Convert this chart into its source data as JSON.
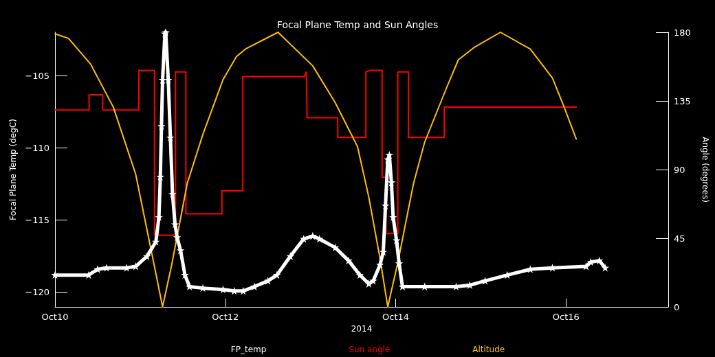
{
  "chart_data": {
    "type": "line",
    "title": "Focal Plane Temp and Sun Angles",
    "xlabel": "2014",
    "ylabel": "Focal Plane Temp (degC)",
    "y2label": "Angle (degrees)",
    "xlim": [
      "2014-10-10T00:00",
      "2014-10-17T04:48"
    ],
    "xticks": [
      {
        "value": "2014-10-10",
        "label": "Oct10"
      },
      {
        "value": "2014-10-12",
        "label": "Oct12"
      },
      {
        "value": "2014-10-14",
        "label": "Oct14"
      },
      {
        "value": "2014-10-16",
        "label": "Oct16"
      }
    ],
    "ylim": [
      -121,
      -102
    ],
    "yticks": [
      -120,
      -115,
      -110,
      -105
    ],
    "y2lim": [
      0,
      180
    ],
    "y2ticks": [
      0,
      45,
      90,
      135,
      180
    ],
    "grid": false,
    "legend": "bottom",
    "series": [
      {
        "name": "FP_temp",
        "color": "#ffffff",
        "marker": "star",
        "x": [
          "2014-10-10T00:00",
          "2014-10-10T09:29",
          "2014-10-10T12:00",
          "2014-10-10T14:31",
          "2014-10-10T20:10",
          "2014-10-10T22:44",
          "2014-10-11T01:54",
          "2014-10-11T04:25",
          "2014-10-11T05:17",
          "2014-10-11T05:41",
          "2014-10-11T06:00",
          "2014-10-11T06:19",
          "2014-10-11T06:58",
          "2014-10-11T07:12",
          "2014-10-11T07:55",
          "2014-10-11T08:31",
          "2014-10-11T09:07",
          "2014-10-11T09:50",
          "2014-10-11T10:25",
          "2014-10-11T11:23",
          "2014-10-11T12:37",
          "2014-10-11T13:54",
          "2014-10-11T17:40",
          "2014-10-11T23:21",
          "2014-10-12T02:31",
          "2014-10-12T05:02",
          "2014-10-12T08:10",
          "2014-10-12T12:00",
          "2014-10-12T14:31",
          "2014-10-12T18:19",
          "2014-10-12T22:05",
          "2014-10-13T00:37",
          "2014-10-13T02:31",
          "2014-10-13T06:58",
          "2014-10-13T10:44",
          "2014-10-13T13:55",
          "2014-10-13T16:25",
          "2014-10-13T17:40",
          "2014-10-13T19:34",
          "2014-10-13T20:30",
          "2014-10-13T21:07",
          "2014-10-13T21:46",
          "2014-10-13T22:13",
          "2014-10-13T22:48",
          "2014-10-13T23:17",
          "2014-10-14T00:14",
          "2014-10-14T00:58",
          "2014-10-14T01:55",
          "2014-10-14T08:10",
          "2014-10-14T17:02",
          "2014-10-14T20:53",
          "2014-10-15T01:12",
          "2014-10-15T07:26",
          "2014-10-15T13:55",
          "2014-10-15T20:10",
          "2014-10-16T05:38",
          "2014-10-16T06:58",
          "2014-10-16T09:22",
          "2014-10-16T11:02"
        ],
        "values": [
          -118.8,
          -118.8,
          -118.4,
          -118.3,
          -118.3,
          -118.2,
          -117.5,
          -116.5,
          -114.8,
          -112.0,
          -108.5,
          -105.3,
          -102.1,
          -102.0,
          -105.3,
          -109.3,
          -113.2,
          -115.3,
          -116.2,
          -117.1,
          -118.8,
          -119.6,
          -119.7,
          -119.8,
          -119.9,
          -119.9,
          -119.6,
          -119.2,
          -118.8,
          -117.5,
          -116.3,
          -116.1,
          -116.3,
          -116.9,
          -117.8,
          -118.8,
          -119.4,
          -119.2,
          -118.1,
          -117.2,
          -114.0,
          -110.8,
          -110.5,
          -112.4,
          -114.8,
          -116.4,
          -118.0,
          -119.6,
          -119.6,
          -119.6,
          -119.5,
          -119.2,
          -118.8,
          -118.4,
          -118.3,
          -118.2,
          -117.9,
          -117.8,
          -118.3
        ]
      },
      {
        "name": "Sun angle",
        "color": "#ff0000",
        "axis": "y2",
        "x": [
          "2014-10-10T00:00",
          "2014-10-10T09:36",
          "2014-10-10T09:36",
          "2014-10-10T13:26",
          "2014-10-10T13:26",
          "2014-10-10T23:37",
          "2014-10-10T23:37",
          "2014-10-11T04:02",
          "2014-10-11T04:02",
          "2014-10-11T09:58",
          "2014-10-11T09:58",
          "2014-10-11T12:53",
          "2014-10-11T12:53",
          "2014-10-11T23:02",
          "2014-10-11T23:02",
          "2014-10-12T04:55",
          "2014-10-12T04:55",
          "2014-10-12T18:14",
          "2014-10-12T22:19",
          "2014-10-12T22:48",
          "2014-10-12T23:02",
          "2014-10-13T07:41",
          "2014-10-13T07:41",
          "2014-10-13T15:36",
          "2014-10-13T15:36",
          "2014-10-13T16:48",
          "2014-10-13T20:10",
          "2014-10-13T20:10",
          "2014-10-13T21:16",
          "2014-10-13T21:16",
          "2014-10-14T00:36",
          "2014-10-14T00:36",
          "2014-10-14T03:36",
          "2014-10-14T03:36",
          "2014-10-14T13:41",
          "2014-10-14T13:41",
          "2014-10-15T08:10",
          "2014-10-15T08:10",
          "2014-10-16T02:53"
        ],
        "values": [
          129,
          129,
          139,
          139,
          129,
          129,
          155,
          155,
          47,
          47,
          154,
          154,
          61,
          61,
          76,
          76,
          151,
          151,
          151,
          154,
          124,
          124,
          111,
          111,
          154,
          155,
          155,
          85,
          85,
          48,
          48,
          154,
          154,
          111,
          111,
          131,
          131,
          131,
          131
        ]
      },
      {
        "name": "Altitude",
        "color": "#ffbf00",
        "axis": "y2",
        "x": [
          "2014-10-10T00:00",
          "2014-10-10T03:48",
          "2014-10-10T10:05",
          "2014-10-10T16:25",
          "2014-10-10T22:44",
          "2014-10-11T03:48",
          "2014-10-11T06:19",
          "2014-10-11T08:50",
          "2014-10-11T13:16",
          "2014-10-11T17:40",
          "2014-10-11T23:21",
          "2014-10-12T03:07",
          "2014-10-12T05:40",
          "2014-10-12T14:50",
          "2014-10-13T00:37",
          "2014-10-13T06:56",
          "2014-10-13T13:15",
          "2014-10-13T16:25",
          "2014-10-13T19:34",
          "2014-10-13T21:46",
          "2014-10-14T00:36",
          "2014-10-14T05:02",
          "2014-10-14T08:10",
          "2014-10-14T14:24",
          "2014-10-14T17:40",
          "2014-10-14T22:05",
          "2014-10-15T05:31",
          "2014-10-15T13:55",
          "2014-10-15T20:10",
          "2014-10-15T23:17",
          "2014-10-16T02:53"
        ],
        "values": [
          179,
          176,
          159,
          131,
          87,
          29,
          0,
          27,
          81,
          113,
          149,
          164,
          169,
          180,
          158,
          134,
          105,
          72,
          32,
          0,
          29,
          81,
          108,
          144,
          162,
          170,
          180,
          169,
          150,
          132,
          110
        ]
      }
    ]
  }
}
